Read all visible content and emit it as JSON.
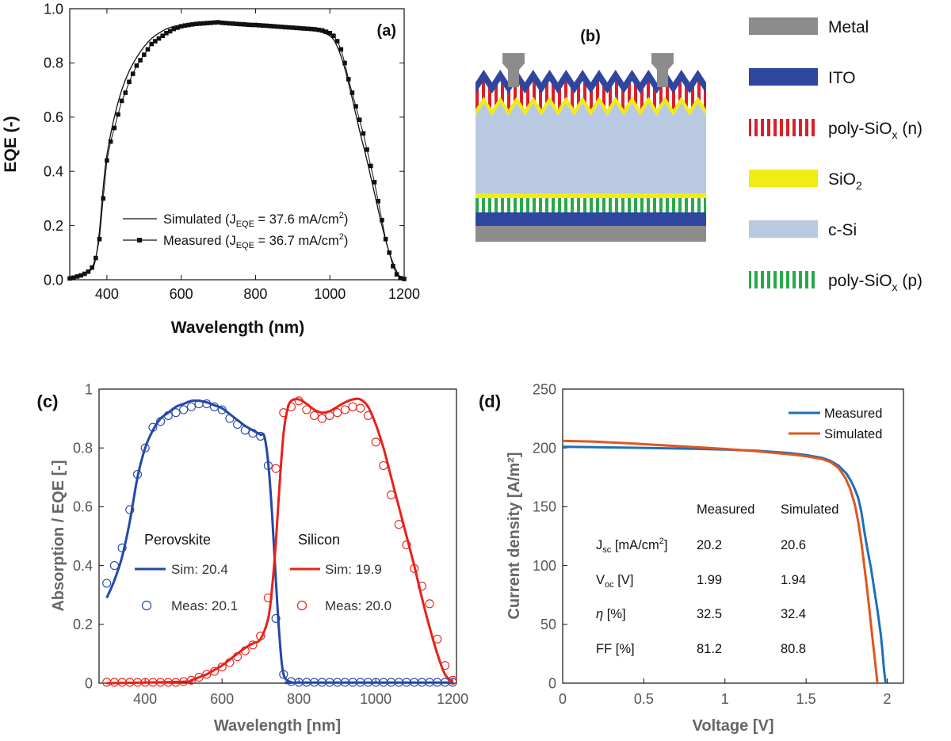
{
  "colors": {
    "black": "#111111",
    "perovskite": "#2447a8",
    "silicon": "#e8211a",
    "measured_d": "#1f6fb8",
    "simulated_d": "#e0561e",
    "metal": "#8c8c8c",
    "ito": "#2e46a0",
    "poly_n": "#d9202a",
    "sio2": "#f2ec12",
    "csi": "#b9c9e2",
    "poly_p": "#29a84a"
  },
  "panel_a": {
    "panel_label": "(a)",
    "legend_simulated_pre": "Simulated (J",
    "legend_simulated_sub": "EQE",
    "legend_simulated_post": " = 37.6 mA/cm",
    "legend_measured_pre": "Measured (J",
    "legend_measured_sub": "EQE",
    "legend_measured_post": " = 36.7 mA/cm",
    "legend_sup": "2",
    "legend_close": ")"
  },
  "panel_b": {
    "panel_label": "(b)",
    "legend": [
      {
        "key": "metal",
        "text": "Metal",
        "sub": ""
      },
      {
        "key": "ito",
        "text": "ITO",
        "sub": ""
      },
      {
        "key": "poly_n",
        "text": "poly-SiO",
        "sub": "x",
        "post": " (n)"
      },
      {
        "key": "sio2",
        "text": "SiO",
        "sub": "2"
      },
      {
        "key": "csi",
        "text": "c-Si",
        "sub": ""
      },
      {
        "key": "poly_p",
        "text": "poly-SiO",
        "sub": "x",
        "post": " (p)"
      }
    ]
  },
  "panel_c": {
    "panel_label": "(c)",
    "perovskite_label": "Perovskite",
    "silicon_label": "Silicon",
    "pv_sim": "Sim: 20.4",
    "pv_meas": "Meas: 20.1",
    "si_sim": "Sim: 19.9",
    "si_meas": "Meas: 20.0"
  },
  "panel_d": {
    "panel_label": "(d)",
    "legend_measured": "Measured",
    "legend_simulated": "Simulated",
    "table_header_measured": "Measured",
    "table_header_simulated": "Simulated",
    "jsc_label": "J",
    "jsc_sub": "sc",
    "jsc_unit": " [mA/cm",
    "jsc_sup": "2",
    "jsc_close": "]",
    "jsc_meas": "20.2",
    "jsc_sim": "20.6",
    "voc_label": "V",
    "voc_sub": "oc",
    "voc_unit": " [V]",
    "voc_meas": "1.99",
    "voc_sim": "1.94",
    "eta_label": "η",
    "eta_unit": " [%]",
    "eta_meas": "32.5",
    "eta_sim": "32.4",
    "ff_label": "FF [%]",
    "ff_meas": "81.2",
    "ff_sim": "80.8"
  },
  "chart_data": [
    {
      "type": "line",
      "id": "a",
      "title": "",
      "xlabel": "Wavelength (nm)",
      "ylabel": "EQE (-)",
      "xlim": [
        300,
        1200
      ],
      "ylim": [
        0,
        1
      ],
      "xticks": [
        400,
        600,
        800,
        1000,
        1200
      ],
      "yticks": [
        0,
        0.2,
        0.4,
        0.6,
        0.8,
        1.0
      ],
      "ytick_labels": [
        "0.0",
        "0.2",
        "0.4",
        "0.6",
        "0.8",
        "1.0"
      ],
      "series": [
        {
          "name": "Simulated",
          "style": "line",
          "x": [
            300,
            320,
            340,
            360,
            370,
            380,
            390,
            400,
            420,
            440,
            460,
            480,
            500,
            520,
            540,
            560,
            580,
            600,
            640,
            680,
            700,
            720,
            760,
            800,
            840,
            880,
            920,
            960,
            1000,
            1020,
            1040,
            1060,
            1080,
            1100,
            1120,
            1140,
            1160,
            1180,
            1190,
            1200
          ],
          "y": [
            0.005,
            0.01,
            0.02,
            0.04,
            0.08,
            0.18,
            0.34,
            0.46,
            0.6,
            0.7,
            0.77,
            0.82,
            0.86,
            0.89,
            0.91,
            0.925,
            0.935,
            0.94,
            0.948,
            0.952,
            0.953,
            0.95,
            0.945,
            0.942,
            0.94,
            0.935,
            0.93,
            0.92,
            0.9,
            0.86,
            0.78,
            0.67,
            0.55,
            0.44,
            0.32,
            0.2,
            0.1,
            0.03,
            0.01,
            0.003
          ]
        },
        {
          "name": "Measured",
          "style": "line-marker",
          "x": [
            300,
            310,
            320,
            330,
            340,
            350,
            360,
            370,
            380,
            390,
            400,
            410,
            420,
            430,
            440,
            450,
            460,
            470,
            480,
            490,
            500,
            510,
            520,
            530,
            540,
            550,
            560,
            570,
            580,
            590,
            600,
            610,
            620,
            630,
            640,
            650,
            660,
            670,
            680,
            690,
            700,
            710,
            720,
            730,
            740,
            750,
            760,
            770,
            780,
            790,
            800,
            810,
            820,
            830,
            840,
            850,
            860,
            870,
            880,
            890,
            900,
            910,
            920,
            930,
            940,
            950,
            960,
            970,
            980,
            990,
            1000,
            1010,
            1020,
            1030,
            1040,
            1050,
            1060,
            1070,
            1080,
            1090,
            1100,
            1110,
            1120,
            1130,
            1140,
            1150,
            1160,
            1170,
            1180,
            1190,
            1200
          ],
          "y": [
            0.005,
            0.008,
            0.012,
            0.016,
            0.022,
            0.03,
            0.045,
            0.08,
            0.15,
            0.3,
            0.44,
            0.51,
            0.56,
            0.61,
            0.66,
            0.69,
            0.73,
            0.76,
            0.79,
            0.81,
            0.83,
            0.85,
            0.87,
            0.88,
            0.89,
            0.9,
            0.91,
            0.917,
            0.925,
            0.93,
            0.935,
            0.938,
            0.94,
            0.942,
            0.944,
            0.945,
            0.946,
            0.947,
            0.948,
            0.949,
            0.95,
            0.948,
            0.947,
            0.946,
            0.945,
            0.944,
            0.943,
            0.942,
            0.941,
            0.94,
            0.94,
            0.939,
            0.938,
            0.937,
            0.936,
            0.935,
            0.934,
            0.933,
            0.932,
            0.931,
            0.93,
            0.929,
            0.928,
            0.927,
            0.926,
            0.925,
            0.924,
            0.922,
            0.92,
            0.915,
            0.91,
            0.9,
            0.88,
            0.85,
            0.8,
            0.74,
            0.69,
            0.64,
            0.59,
            0.54,
            0.48,
            0.42,
            0.36,
            0.29,
            0.22,
            0.15,
            0.1,
            0.05,
            0.02,
            0.006,
            0.003
          ]
        }
      ]
    },
    {
      "type": "line",
      "id": "c",
      "title": "",
      "xlabel": "Wavelength [nm]",
      "ylabel": "Absorption / EQE [-]",
      "xlim": [
        280,
        1210
      ],
      "ylim": [
        0,
        1
      ],
      "xticks": [
        400,
        600,
        800,
        1000,
        1200
      ],
      "yticks": [
        0,
        0.2,
        0.4,
        0.6,
        0.8,
        1
      ],
      "ytick_labels": [
        "0",
        "0.2",
        "0.4",
        "0.6",
        "0.8",
        "1"
      ],
      "series": [
        {
          "name": "Perovskite Sim",
          "style": "line",
          "color_key": "perovskite",
          "x": [
            300,
            320,
            340,
            360,
            380,
            400,
            420,
            440,
            460,
            480,
            500,
            520,
            540,
            560,
            580,
            600,
            620,
            640,
            660,
            680,
            700,
            710,
            720,
            730,
            740,
            750,
            760,
            780,
            800,
            1200
          ],
          "y": [
            0.29,
            0.35,
            0.43,
            0.55,
            0.7,
            0.8,
            0.86,
            0.9,
            0.92,
            0.94,
            0.95,
            0.96,
            0.96,
            0.955,
            0.945,
            0.935,
            0.915,
            0.895,
            0.875,
            0.86,
            0.845,
            0.84,
            0.75,
            0.58,
            0.35,
            0.15,
            0.03,
            0.003,
            0.002,
            0.002
          ]
        },
        {
          "name": "Perovskite Meas",
          "style": "markers",
          "color_key": "perovskite",
          "x": [
            300,
            320,
            340,
            360,
            380,
            400,
            420,
            440,
            460,
            480,
            500,
            520,
            540,
            560,
            580,
            600,
            620,
            640,
            660,
            680,
            700,
            720,
            740,
            760,
            780,
            800,
            820,
            840,
            860,
            880,
            900,
            920,
            940,
            960,
            980,
            1000,
            1020,
            1040,
            1060,
            1080,
            1100,
            1120,
            1140,
            1160,
            1180,
            1200
          ],
          "y": [
            0.34,
            0.4,
            0.46,
            0.59,
            0.71,
            0.8,
            0.87,
            0.89,
            0.91,
            0.92,
            0.93,
            0.94,
            0.95,
            0.95,
            0.94,
            0.93,
            0.9,
            0.88,
            0.86,
            0.85,
            0.84,
            0.74,
            0.22,
            0.03,
            0.005,
            0.003,
            0.003,
            0.003,
            0.003,
            0.003,
            0.003,
            0.003,
            0.003,
            0.003,
            0.003,
            0.003,
            0.003,
            0.003,
            0.003,
            0.003,
            0.003,
            0.003,
            0.003,
            0.003,
            0.003,
            0.003
          ]
        },
        {
          "name": "Silicon Sim",
          "style": "line",
          "color_key": "silicon",
          "x": [
            300,
            500,
            520,
            540,
            560,
            580,
            600,
            620,
            640,
            660,
            680,
            700,
            720,
            730,
            740,
            750,
            760,
            770,
            780,
            800,
            820,
            840,
            860,
            880,
            900,
            920,
            940,
            960,
            980,
            1000,
            1020,
            1040,
            1060,
            1080,
            1100,
            1120,
            1140,
            1160,
            1180,
            1200
          ],
          "y": [
            0.0,
            0.005,
            0.01,
            0.02,
            0.03,
            0.045,
            0.06,
            0.08,
            0.1,
            0.12,
            0.135,
            0.15,
            0.22,
            0.32,
            0.48,
            0.68,
            0.85,
            0.93,
            0.96,
            0.965,
            0.95,
            0.93,
            0.92,
            0.925,
            0.94,
            0.955,
            0.965,
            0.965,
            0.94,
            0.88,
            0.8,
            0.7,
            0.6,
            0.5,
            0.4,
            0.29,
            0.19,
            0.1,
            0.03,
            0.005
          ]
        },
        {
          "name": "Silicon Meas",
          "style": "markers",
          "color_key": "silicon",
          "x": [
            300,
            320,
            340,
            360,
            380,
            400,
            420,
            440,
            460,
            480,
            500,
            520,
            540,
            560,
            580,
            600,
            620,
            640,
            660,
            680,
            700,
            720,
            740,
            760,
            780,
            800,
            820,
            840,
            860,
            880,
            900,
            920,
            940,
            960,
            980,
            1000,
            1020,
            1040,
            1060,
            1080,
            1100,
            1120,
            1140,
            1160,
            1180,
            1200
          ],
          "y": [
            0.003,
            0.003,
            0.003,
            0.003,
            0.003,
            0.003,
            0.003,
            0.003,
            0.003,
            0.003,
            0.005,
            0.01,
            0.02,
            0.03,
            0.04,
            0.055,
            0.07,
            0.09,
            0.11,
            0.13,
            0.16,
            0.29,
            0.73,
            0.92,
            0.94,
            0.96,
            0.93,
            0.91,
            0.9,
            0.91,
            0.92,
            0.93,
            0.94,
            0.935,
            0.91,
            0.82,
            0.74,
            0.64,
            0.54,
            0.47,
            0.39,
            0.33,
            0.27,
            0.15,
            0.06,
            0.01
          ]
        }
      ]
    },
    {
      "type": "line",
      "id": "d",
      "title": "",
      "xlabel": "Voltage [V]",
      "ylabel": "Current density [A/m²]",
      "xlim": [
        0,
        2.1
      ],
      "ylim": [
        0,
        250
      ],
      "xticks": [
        0,
        0.5,
        1,
        1.5,
        2
      ],
      "xtick_labels": [
        "0",
        "0.5",
        "1",
        "1.5",
        "2"
      ],
      "yticks": [
        0,
        50,
        100,
        150,
        200,
        250
      ],
      "series": [
        {
          "name": "Measured",
          "color_key": "measured_d",
          "x": [
            0,
            0.2,
            0.4,
            0.6,
            0.8,
            1.0,
            1.2,
            1.4,
            1.5,
            1.6,
            1.65,
            1.7,
            1.75,
            1.78,
            1.8,
            1.82,
            1.84,
            1.86,
            1.88,
            1.9,
            1.92,
            1.94,
            1.96,
            1.97,
            1.98,
            1.99
          ],
          "y": [
            201,
            200.6,
            200.2,
            199.8,
            199.3,
            198.6,
            197.6,
            195.6,
            194,
            191.5,
            189,
            185,
            178,
            171,
            165,
            158,
            146,
            128,
            112,
            98,
            80,
            62,
            42,
            28,
            12,
            0
          ]
        },
        {
          "name": "Simulated",
          "color_key": "simulated_d",
          "x": [
            0,
            0.2,
            0.4,
            0.6,
            0.8,
            1.0,
            1.2,
            1.4,
            1.5,
            1.6,
            1.65,
            1.7,
            1.74,
            1.77,
            1.8,
            1.82,
            1.84,
            1.86,
            1.88,
            1.9,
            1.92,
            1.94
          ],
          "y": [
            206,
            205.3,
            204,
            202.4,
            200.8,
            199.1,
            197.2,
            194.6,
            193,
            190.5,
            188,
            183,
            175,
            166,
            152,
            138,
            120,
            98,
            75,
            50,
            25,
            0
          ]
        }
      ]
    }
  ]
}
